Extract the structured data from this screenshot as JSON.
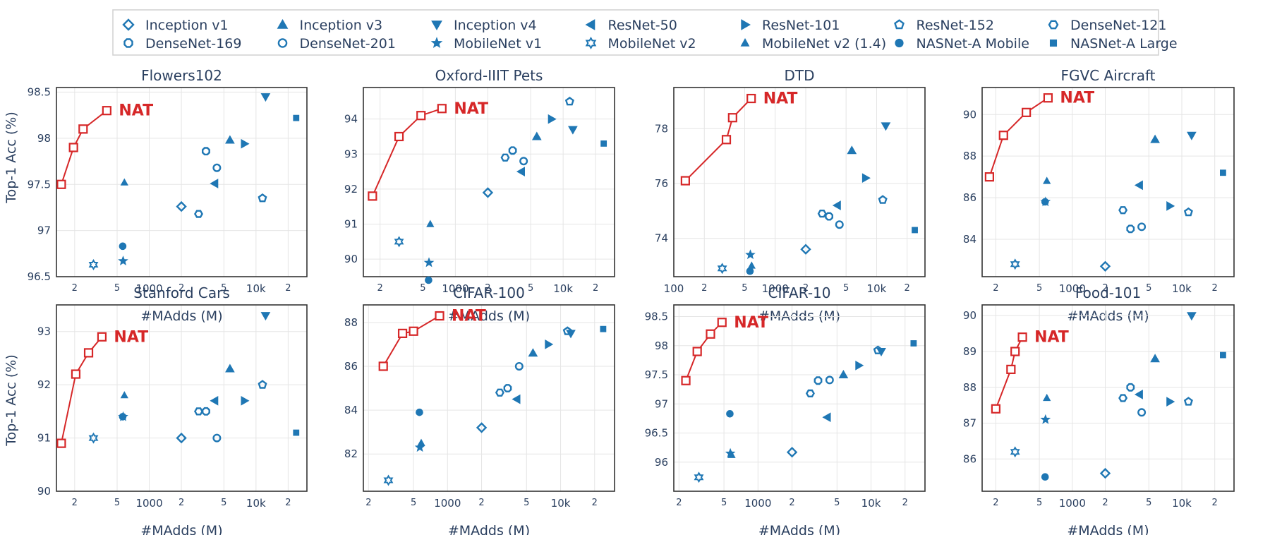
{
  "colors": {
    "baseline": "#1f77b4",
    "nat": "#d62728",
    "grid": "#e5e5e5",
    "frame": "#333333"
  },
  "legend": [
    {
      "label": "Inception v1",
      "symbol": "diamond-open"
    },
    {
      "label": "Inception v3",
      "symbol": "triangle-up"
    },
    {
      "label": "Inception v4",
      "symbol": "triangle-down"
    },
    {
      "label": "ResNet-50",
      "symbol": "triangle-left"
    },
    {
      "label": "ResNet-101",
      "symbol": "triangle-right"
    },
    {
      "label": "ResNet-152",
      "symbol": "pentagon-open"
    },
    {
      "label": "DenseNet-121",
      "symbol": "hexagon-open"
    },
    {
      "label": "DenseNet-169",
      "symbol": "octagon-open"
    },
    {
      "label": "DenseNet-201",
      "symbol": "circle-open"
    },
    {
      "label": "MobileNet v1",
      "symbol": "star"
    },
    {
      "label": "MobileNet v2",
      "symbol": "hexagram-open"
    },
    {
      "label": "MobileNet v2 (1.4)",
      "symbol": "triangle-up-small"
    },
    {
      "label": "NASNet-A Mobile",
      "symbol": "circle"
    },
    {
      "label": "NASNet-A Large",
      "symbol": "square"
    }
  ],
  "y_axis_label": "Top-1 Acc (%)",
  "x_axis_label": "#MAdds (M)",
  "nat_label": "NAT",
  "chart_data": [
    {
      "type": "scatter",
      "title": "Flowers102",
      "xscale": "log",
      "xlim": [
        135,
        30000
      ],
      "ylim": [
        96.5,
        98.55
      ],
      "yticks": [
        96.5,
        97,
        97.5,
        98,
        98.5
      ],
      "yticklabels": [
        "96.5",
        "97",
        "97.5",
        "98",
        "98.5"
      ],
      "xticks": [
        200,
        500,
        1000,
        2000,
        5000,
        10000,
        20000
      ],
      "xticklabels": [
        "2",
        "5",
        "1000",
        "2",
        "5",
        "10k",
        "2"
      ],
      "nat": {
        "x": [
          150,
          195,
          240,
          400
        ],
        "y": [
          97.5,
          97.9,
          98.1,
          98.3
        ]
      },
      "baselines": [
        {
          "model": "Inception v1",
          "x": 2000,
          "y": 97.26
        },
        {
          "model": "Inception v3",
          "x": 5700,
          "y": 97.98
        },
        {
          "model": "Inception v4",
          "x": 12300,
          "y": 98.45
        },
        {
          "model": "ResNet-50",
          "x": 4100,
          "y": 97.51
        },
        {
          "model": "ResNet-101",
          "x": 7800,
          "y": 97.94
        },
        {
          "model": "ResNet-152",
          "x": 11500,
          "y": 97.35
        },
        {
          "model": "DenseNet-121",
          "x": 2900,
          "y": 97.18
        },
        {
          "model": "DenseNet-169",
          "x": 3400,
          "y": 97.86
        },
        {
          "model": "DenseNet-201",
          "x": 4300,
          "y": 97.68
        },
        {
          "model": "MobileNet v1",
          "x": 569,
          "y": 96.67
        },
        {
          "model": "MobileNet v2",
          "x": 300,
          "y": 96.63
        },
        {
          "model": "MobileNet v2 (1.4)",
          "x": 585,
          "y": 97.52
        },
        {
          "model": "NASNet-A Mobile",
          "x": 564,
          "y": 96.83
        },
        {
          "model": "NASNet-A Large",
          "x": 23800,
          "y": 98.22
        }
      ]
    },
    {
      "type": "scatter",
      "title": "Oxford-IIIT Pets",
      "xscale": "log",
      "xlim": [
        140,
        30000
      ],
      "ylim": [
        89.5,
        94.9
      ],
      "yticks": [
        90,
        91,
        92,
        93,
        94
      ],
      "yticklabels": [
        "90",
        "91",
        "92",
        "93",
        "94"
      ],
      "xticks": [
        200,
        500,
        1000,
        2000,
        5000,
        10000,
        20000
      ],
      "xticklabels": [
        "2",
        "5",
        "1000",
        "2",
        "5",
        "10k",
        "2"
      ],
      "nat": {
        "x": [
          170,
          300,
          480,
          750
        ],
        "y": [
          91.8,
          93.5,
          94.1,
          94.3
        ]
      },
      "baselines": [
        {
          "model": "Inception v1",
          "x": 2000,
          "y": 91.9
        },
        {
          "model": "Inception v3",
          "x": 5700,
          "y": 93.5
        },
        {
          "model": "Inception v4",
          "x": 12300,
          "y": 93.7
        },
        {
          "model": "ResNet-50",
          "x": 4100,
          "y": 92.5
        },
        {
          "model": "ResNet-101",
          "x": 7800,
          "y": 94.0
        },
        {
          "model": "ResNet-152",
          "x": 11500,
          "y": 94.5
        },
        {
          "model": "DenseNet-121",
          "x": 2900,
          "y": 92.9
        },
        {
          "model": "DenseNet-169",
          "x": 3400,
          "y": 93.1
        },
        {
          "model": "DenseNet-201",
          "x": 4300,
          "y": 92.8
        },
        {
          "model": "MobileNet v1",
          "x": 569,
          "y": 89.9
        },
        {
          "model": "MobileNet v2",
          "x": 300,
          "y": 90.5
        },
        {
          "model": "MobileNet v2 (1.4)",
          "x": 585,
          "y": 91.0
        },
        {
          "model": "NASNet-A Mobile",
          "x": 564,
          "y": 89.4
        },
        {
          "model": "NASNet-A Large",
          "x": 23800,
          "y": 93.3
        }
      ]
    },
    {
      "type": "scatter",
      "title": "DTD",
      "xscale": "log",
      "xlim": [
        100,
        30000
      ],
      "ylim": [
        72.6,
        79.5
      ],
      "yticks": [
        74,
        76,
        78
      ],
      "yticklabels": [
        "74",
        "76",
        "78"
      ],
      "xticks": [
        100,
        200,
        500,
        1000,
        2000,
        5000,
        10000,
        20000
      ],
      "xticklabels": [
        "100",
        "2",
        "5",
        "1000",
        "2",
        "5",
        "10k",
        "2"
      ],
      "nat": {
        "x": [
          130,
          330,
          380,
          580
        ],
        "y": [
          76.1,
          77.6,
          78.4,
          79.1
        ]
      },
      "baselines": [
        {
          "model": "Inception v1",
          "x": 2000,
          "y": 73.6
        },
        {
          "model": "Inception v3",
          "x": 5700,
          "y": 77.2
        },
        {
          "model": "Inception v4",
          "x": 12300,
          "y": 78.1
        },
        {
          "model": "ResNet-50",
          "x": 4100,
          "y": 75.2
        },
        {
          "model": "ResNet-101",
          "x": 7800,
          "y": 76.2
        },
        {
          "model": "ResNet-152",
          "x": 11500,
          "y": 75.4
        },
        {
          "model": "DenseNet-121",
          "x": 2900,
          "y": 74.9
        },
        {
          "model": "DenseNet-169",
          "x": 3400,
          "y": 74.8
        },
        {
          "model": "DenseNet-201",
          "x": 4300,
          "y": 74.5
        },
        {
          "model": "MobileNet v1",
          "x": 569,
          "y": 73.4
        },
        {
          "model": "MobileNet v2",
          "x": 300,
          "y": 72.9
        },
        {
          "model": "MobileNet v2 (1.4)",
          "x": 585,
          "y": 73.0
        },
        {
          "model": "NASNet-A Mobile",
          "x": 564,
          "y": 72.8
        },
        {
          "model": "NASNet-A Large",
          "x": 23800,
          "y": 74.3
        }
      ]
    },
    {
      "type": "scatter",
      "title": "FGVC Aircraft",
      "xscale": "log",
      "xlim": [
        150,
        30000
      ],
      "ylim": [
        82.2,
        91.3
      ],
      "yticks": [
        84,
        86,
        88,
        90
      ],
      "yticklabels": [
        "84",
        "86",
        "88",
        "90"
      ],
      "xticks": [
        200,
        500,
        1000,
        2000,
        5000,
        10000,
        20000
      ],
      "xticklabels": [
        "2",
        "5",
        "1000",
        "2",
        "5",
        "10k",
        "2"
      ],
      "nat": {
        "x": [
          175,
          235,
          380,
          600
        ],
        "y": [
          87.0,
          89.0,
          90.1,
          90.8
        ]
      },
      "baselines": [
        {
          "model": "Inception v1",
          "x": 2000,
          "y": 82.7
        },
        {
          "model": "Inception v3",
          "x": 5700,
          "y": 88.8
        },
        {
          "model": "Inception v4",
          "x": 12300,
          "y": 89.0
        },
        {
          "model": "ResNet-50",
          "x": 4100,
          "y": 86.6
        },
        {
          "model": "ResNet-101",
          "x": 7800,
          "y": 85.6
        },
        {
          "model": "ResNet-152",
          "x": 11500,
          "y": 85.3
        },
        {
          "model": "DenseNet-121",
          "x": 2900,
          "y": 85.4
        },
        {
          "model": "DenseNet-169",
          "x": 3400,
          "y": 84.5
        },
        {
          "model": "DenseNet-201",
          "x": 4300,
          "y": 84.6
        },
        {
          "model": "MobileNet v1",
          "x": 569,
          "y": 85.8
        },
        {
          "model": "MobileNet v2",
          "x": 300,
          "y": 82.8
        },
        {
          "model": "MobileNet v2 (1.4)",
          "x": 585,
          "y": 86.8
        },
        {
          "model": "NASNet-A Mobile",
          "x": 564,
          "y": 85.8
        },
        {
          "model": "NASNet-A Large",
          "x": 23800,
          "y": 87.2
        }
      ]
    },
    {
      "type": "scatter",
      "title": "Stanford Cars",
      "xscale": "log",
      "xlim": [
        135,
        30000
      ],
      "ylim": [
        90,
        93.5
      ],
      "yticks": [
        90,
        91,
        92,
        93
      ],
      "yticklabels": [
        "90",
        "91",
        "92",
        "93"
      ],
      "xticks": [
        200,
        500,
        1000,
        2000,
        5000,
        10000,
        20000
      ],
      "xticklabels": [
        "2",
        "5",
        "1000",
        "2",
        "5",
        "10k",
        "2"
      ],
      "nat": {
        "x": [
          150,
          205,
          270,
          360
        ],
        "y": [
          90.9,
          92.2,
          92.6,
          92.9
        ]
      },
      "baselines": [
        {
          "model": "Inception v1",
          "x": 2000,
          "y": 91.0
        },
        {
          "model": "Inception v3",
          "x": 5700,
          "y": 92.3
        },
        {
          "model": "Inception v4",
          "x": 12300,
          "y": 93.3
        },
        {
          "model": "ResNet-50",
          "x": 4100,
          "y": 91.7
        },
        {
          "model": "ResNet-101",
          "x": 7800,
          "y": 91.7
        },
        {
          "model": "ResNet-152",
          "x": 11500,
          "y": 92.0
        },
        {
          "model": "DenseNet-121",
          "x": 2900,
          "y": 91.5
        },
        {
          "model": "DenseNet-169",
          "x": 3400,
          "y": 91.5
        },
        {
          "model": "DenseNet-201",
          "x": 4300,
          "y": 91.0
        },
        {
          "model": "MobileNet v1",
          "x": 569,
          "y": 91.4
        },
        {
          "model": "MobileNet v2",
          "x": 300,
          "y": 91.0
        },
        {
          "model": "MobileNet v2 (1.4)",
          "x": 585,
          "y": 91.8
        },
        {
          "model": "NASNet-A Mobile",
          "x": 564,
          "y": 91.4
        },
        {
          "model": "NASNet-A Large",
          "x": 23800,
          "y": 91.1
        }
      ]
    },
    {
      "type": "scatter",
      "title": "CIFAR-100",
      "xscale": "log",
      "xlim": [
        180,
        30000
      ],
      "ylim": [
        80.3,
        88.8
      ],
      "yticks": [
        82,
        84,
        86,
        88
      ],
      "yticklabels": [
        "82",
        "84",
        "86",
        "88"
      ],
      "xticks": [
        200,
        500,
        1000,
        2000,
        5000,
        10000,
        20000
      ],
      "xticklabels": [
        "2",
        "5",
        "1000",
        "2",
        "5",
        "10k",
        "2"
      ],
      "nat": {
        "x": [
          270,
          400,
          500,
          850
        ],
        "y": [
          86.0,
          87.5,
          87.6,
          88.3
        ]
      },
      "baselines": [
        {
          "model": "Inception v1",
          "x": 2000,
          "y": 83.2
        },
        {
          "model": "Inception v3",
          "x": 5700,
          "y": 86.6
        },
        {
          "model": "Inception v4",
          "x": 12300,
          "y": 87.5
        },
        {
          "model": "ResNet-50",
          "x": 4100,
          "y": 84.5
        },
        {
          "model": "ResNet-101",
          "x": 7800,
          "y": 87.0
        },
        {
          "model": "ResNet-152",
          "x": 11500,
          "y": 87.6
        },
        {
          "model": "DenseNet-121",
          "x": 2900,
          "y": 84.8
        },
        {
          "model": "DenseNet-169",
          "x": 3400,
          "y": 85.0
        },
        {
          "model": "DenseNet-201",
          "x": 4300,
          "y": 86.0
        },
        {
          "model": "MobileNet v1",
          "x": 569,
          "y": 82.3
        },
        {
          "model": "MobileNet v2",
          "x": 300,
          "y": 80.8
        },
        {
          "model": "MobileNet v2 (1.4)",
          "x": 585,
          "y": 82.5
        },
        {
          "model": "NASNet-A Mobile",
          "x": 564,
          "y": 83.9
        },
        {
          "model": "NASNet-A Large",
          "x": 23800,
          "y": 87.7
        }
      ]
    },
    {
      "type": "scatter",
      "title": "CIFAR-10",
      "xscale": "log",
      "xlim": [
        180,
        30000
      ],
      "ylim": [
        95.5,
        98.7
      ],
      "yticks": [
        96,
        96.5,
        97,
        97.5,
        98,
        98.5
      ],
      "yticklabels": [
        "96",
        "96.5",
        "97",
        "97.5",
        "98",
        "98.5"
      ],
      "xticks": [
        200,
        500,
        1000,
        2000,
        5000,
        10000,
        20000
      ],
      "xticklabels": [
        "2",
        "5",
        "1000",
        "2",
        "5",
        "10k",
        "2"
      ],
      "nat": {
        "x": [
          230,
          290,
          380,
          480
        ],
        "y": [
          97.4,
          97.9,
          98.2,
          98.4
        ]
      },
      "baselines": [
        {
          "model": "Inception v1",
          "x": 2000,
          "y": 96.17
        },
        {
          "model": "Inception v3",
          "x": 5700,
          "y": 97.5
        },
        {
          "model": "Inception v4",
          "x": 12300,
          "y": 97.9
        },
        {
          "model": "ResNet-50",
          "x": 4100,
          "y": 96.77
        },
        {
          "model": "ResNet-101",
          "x": 7800,
          "y": 97.66
        },
        {
          "model": "ResNet-152",
          "x": 11500,
          "y": 97.92
        },
        {
          "model": "DenseNet-121",
          "x": 2900,
          "y": 97.18
        },
        {
          "model": "DenseNet-169",
          "x": 3400,
          "y": 97.4
        },
        {
          "model": "DenseNet-201",
          "x": 4300,
          "y": 97.41
        },
        {
          "model": "MobileNet v1",
          "x": 569,
          "y": 96.15
        },
        {
          "model": "MobileNet v2",
          "x": 300,
          "y": 95.74
        },
        {
          "model": "MobileNet v2 (1.4)",
          "x": 585,
          "y": 96.12
        },
        {
          "model": "NASNet-A Mobile",
          "x": 564,
          "y": 96.83
        },
        {
          "model": "NASNet-A Large",
          "x": 23800,
          "y": 98.04
        }
      ]
    },
    {
      "type": "scatter",
      "title": "Food-101",
      "xscale": "log",
      "xlim": [
        150,
        30000
      ],
      "ylim": [
        85.1,
        90.3
      ],
      "yticks": [
        86,
        87,
        88,
        89,
        90
      ],
      "yticklabels": [
        "86",
        "87",
        "88",
        "89",
        "90"
      ],
      "xticks": [
        200,
        500,
        1000,
        2000,
        5000,
        10000,
        20000
      ],
      "xticklabels": [
        "2",
        "5",
        "1000",
        "2",
        "5",
        "10k",
        "2"
      ],
      "nat": {
        "x": [
          200,
          275,
          300,
          350
        ],
        "y": [
          87.4,
          88.5,
          89.0,
          89.4
        ]
      },
      "baselines": [
        {
          "model": "Inception v1",
          "x": 2000,
          "y": 85.6
        },
        {
          "model": "Inception v3",
          "x": 5700,
          "y": 88.8
        },
        {
          "model": "Inception v4",
          "x": 12300,
          "y": 90.0
        },
        {
          "model": "ResNet-50",
          "x": 4100,
          "y": 87.8
        },
        {
          "model": "ResNet-101",
          "x": 7800,
          "y": 87.6
        },
        {
          "model": "ResNet-152",
          "x": 11500,
          "y": 87.6
        },
        {
          "model": "DenseNet-121",
          "x": 2900,
          "y": 87.7
        },
        {
          "model": "DenseNet-169",
          "x": 3400,
          "y": 88.0
        },
        {
          "model": "DenseNet-201",
          "x": 4300,
          "y": 87.3
        },
        {
          "model": "MobileNet v1",
          "x": 569,
          "y": 87.1
        },
        {
          "model": "MobileNet v2",
          "x": 300,
          "y": 86.2
        },
        {
          "model": "MobileNet v2 (1.4)",
          "x": 585,
          "y": 87.7
        },
        {
          "model": "NASNet-A Mobile",
          "x": 564,
          "y": 85.5
        },
        {
          "model": "NASNet-A Large",
          "x": 23800,
          "y": 88.9
        }
      ]
    }
  ]
}
